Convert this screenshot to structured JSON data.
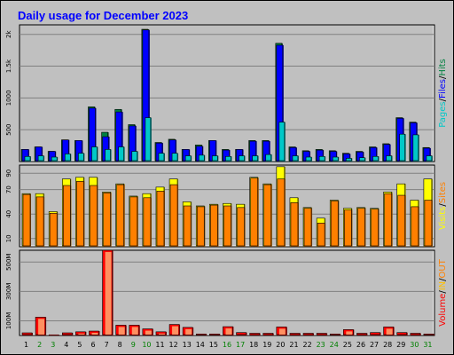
{
  "chart_data": [
    {
      "type": "bar",
      "title": "Daily usage for December 2023",
      "panel": "top",
      "legend": [
        "Pages",
        "Files",
        "Hits"
      ],
      "legend_separator": "/",
      "legend_colors": [
        "#00c8c8",
        "#0000ff",
        "#008040"
      ],
      "yticks": [
        "500",
        "1000",
        "1.5k",
        "2k"
      ],
      "ylim": [
        0,
        2150
      ],
      "categories": [
        "1",
        "2",
        "3",
        "4",
        "5",
        "6",
        "7",
        "8",
        "9",
        "10",
        "11",
        "12",
        "13",
        "14",
        "15",
        "16",
        "17",
        "18",
        "19",
        "20",
        "21",
        "22",
        "23",
        "24",
        "25",
        "26",
        "27",
        "28",
        "29",
        "30",
        "31"
      ],
      "series": [
        {
          "name": "Hits",
          "values": [
            190,
            230,
            160,
            340,
            330,
            860,
            460,
            820,
            580,
            2080,
            300,
            350,
            190,
            260,
            330,
            190,
            190,
            330,
            330,
            1860,
            230,
            170,
            190,
            170,
            130,
            160,
            230,
            280,
            690,
            620,
            220
          ]
        },
        {
          "name": "Files",
          "values": [
            190,
            230,
            160,
            340,
            330,
            840,
            390,
            780,
            560,
            2070,
            290,
            340,
            190,
            240,
            330,
            180,
            190,
            320,
            320,
            1830,
            220,
            160,
            180,
            160,
            120,
            150,
            220,
            270,
            680,
            610,
            210
          ]
        },
        {
          "name": "Pages",
          "values": [
            80,
            90,
            70,
            120,
            130,
            230,
            190,
            230,
            160,
            690,
            130,
            130,
            90,
            100,
            90,
            80,
            90,
            90,
            110,
            620,
            90,
            70,
            80,
            70,
            50,
            60,
            80,
            90,
            430,
            420,
            90
          ]
        }
      ]
    },
    {
      "type": "bar",
      "panel": "middle",
      "legend": [
        "Visits",
        "Sites"
      ],
      "legend_separator": "/",
      "legend_colors": [
        "#ffff00",
        "#ff8000"
      ],
      "yticks": [
        "10",
        "40",
        "70",
        "90"
      ],
      "ylim": [
        0,
        100
      ],
      "categories": [
        "1",
        "2",
        "3",
        "4",
        "5",
        "6",
        "7",
        "8",
        "9",
        "10",
        "11",
        "12",
        "13",
        "14",
        "15",
        "16",
        "17",
        "18",
        "19",
        "20",
        "21",
        "22",
        "23",
        "24",
        "25",
        "26",
        "27",
        "28",
        "29",
        "30",
        "31"
      ],
      "series": [
        {
          "name": "Visits",
          "values": [
            65,
            65,
            43,
            83,
            85,
            85,
            67,
            77,
            62,
            65,
            73,
            83,
            55,
            50,
            52,
            53,
            52,
            85,
            77,
            98,
            60,
            48,
            35,
            57,
            47,
            48,
            47,
            67,
            77,
            57,
            83
          ]
        },
        {
          "name": "Sites",
          "values": [
            64,
            61,
            41,
            75,
            80,
            75,
            66,
            76,
            61,
            60,
            68,
            76,
            50,
            49,
            51,
            50,
            48,
            84,
            76,
            83,
            54,
            47,
            29,
            56,
            45,
            47,
            46,
            65,
            63,
            49,
            57
          ]
        }
      ]
    },
    {
      "type": "bar",
      "panel": "bottom",
      "legend": [
        "Volume",
        "IN",
        "OUT"
      ],
      "legend_separator": "/",
      "legend_colors": [
        "#ff0000",
        "#ffc000",
        "#ff8000"
      ],
      "yticks": [
        "100M",
        "300M",
        "500M"
      ],
      "ylim": [
        0,
        580
      ],
      "categories": [
        "1",
        "2",
        "3",
        "4",
        "5",
        "6",
        "7",
        "8",
        "9",
        "10",
        "11",
        "12",
        "13",
        "14",
        "15",
        "16",
        "17",
        "18",
        "19",
        "20",
        "21",
        "22",
        "23",
        "24",
        "25",
        "26",
        "27",
        "28",
        "29",
        "30",
        "31"
      ],
      "series": [
        {
          "name": "Volume",
          "values": [
            18,
            125,
            5,
            18,
            25,
            30,
            580,
            70,
            70,
            45,
            25,
            75,
            55,
            10,
            10,
            60,
            20,
            15,
            15,
            58,
            15,
            15,
            15,
            10,
            40,
            15,
            20,
            58,
            20,
            15,
            10
          ]
        }
      ],
      "xlabel_colors": [
        "#000000",
        "#008000",
        "#008000",
        "#000000",
        "#000000",
        "#000000",
        "#000000",
        "#000000",
        "#008000",
        "#008000",
        "#000000",
        "#000000",
        "#000000",
        "#000000",
        "#000000",
        "#008000",
        "#008000",
        "#000000",
        "#000000",
        "#000000",
        "#000000",
        "#000000",
        "#008000",
        "#008000",
        "#000000",
        "#000000",
        "#000000",
        "#000000",
        "#000000",
        "#008000",
        "#008000"
      ]
    }
  ],
  "colors": {
    "background": "#c0c0c0",
    "plot": "#c0c0c0",
    "grid": "#808080",
    "title": "#0000ff",
    "hits": "#008040",
    "files": "#0000ff",
    "pages": "#00c8c8",
    "visits": "#ffff00",
    "sites": "#ff8000",
    "volume": "#ff0000"
  }
}
